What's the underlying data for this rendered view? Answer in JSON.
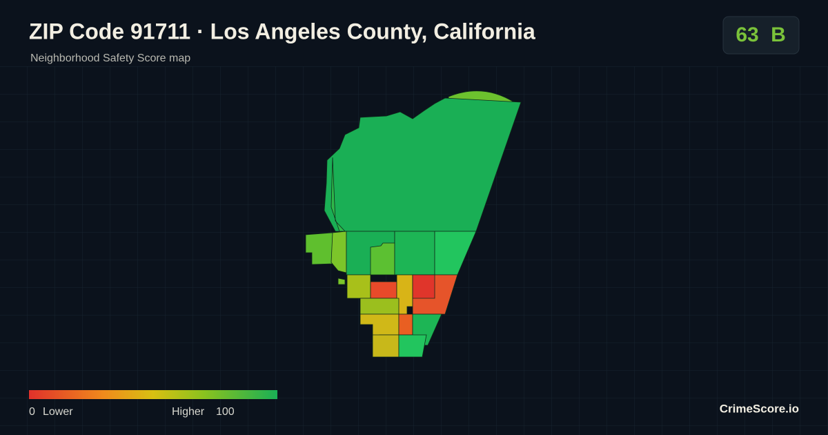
{
  "header": {
    "title": "ZIP Code 91711 · Los Angeles County, California",
    "subtitle": "Neighborhood Safety Score map"
  },
  "score": {
    "value": "63",
    "grade": "B"
  },
  "legend": {
    "min": "0",
    "min_label": "Lower",
    "max_label": "Higher",
    "max": "100"
  },
  "brand": "CrimeScore.io"
}
